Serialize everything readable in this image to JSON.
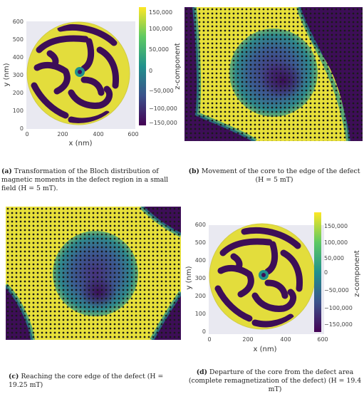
{
  "panels": {
    "a": {
      "letter": "(a)",
      "caption": "Transformation of the Bloch distribution of magnetic moments in the defect region in a small field (H = 5 mT).",
      "xlabel": "x (nm)",
      "ylabel": "y (nm)",
      "xticks": [
        "0",
        "200",
        "400",
        "600"
      ],
      "yticks": [
        "0",
        "100",
        "200",
        "300",
        "400",
        "500",
        "600"
      ],
      "colorbar_label": "z-component",
      "colorbar_ticks": [
        "150,000",
        "100,000",
        "50,000",
        "0",
        "−50,000",
        "−100,000",
        "−150,000"
      ]
    },
    "b": {
      "letter": "(b)",
      "caption": "Movement of the core to the edge of the defect (H = 5 mT)"
    },
    "c": {
      "letter": "(c)",
      "caption": "Reaching the core edge of the defect (H = 19.25 mT)"
    },
    "d": {
      "letter": "(d)",
      "caption": "Departure of the core from the defect area (complete remagnetization of the defect) (H = 19.4 mT)",
      "xlabel": "x (nm)",
      "ylabel": "y (nm)",
      "xticks": [
        "0",
        "200",
        "400",
        "600"
      ],
      "yticks": [
        "0",
        "100",
        "200",
        "300",
        "400",
        "500",
        "600"
      ],
      "colorbar_label": "z-component",
      "colorbar_ticks": [
        "150,000",
        "100,000",
        "50,000",
        "0",
        "−50,000",
        "−100,000",
        "−150,000"
      ]
    }
  },
  "colors": {
    "yellow": "#e7e03a",
    "purple": "#3d0e57",
    "teal": "#21918c",
    "blue": "#3f5e92",
    "frame": "#e9e9f1"
  }
}
